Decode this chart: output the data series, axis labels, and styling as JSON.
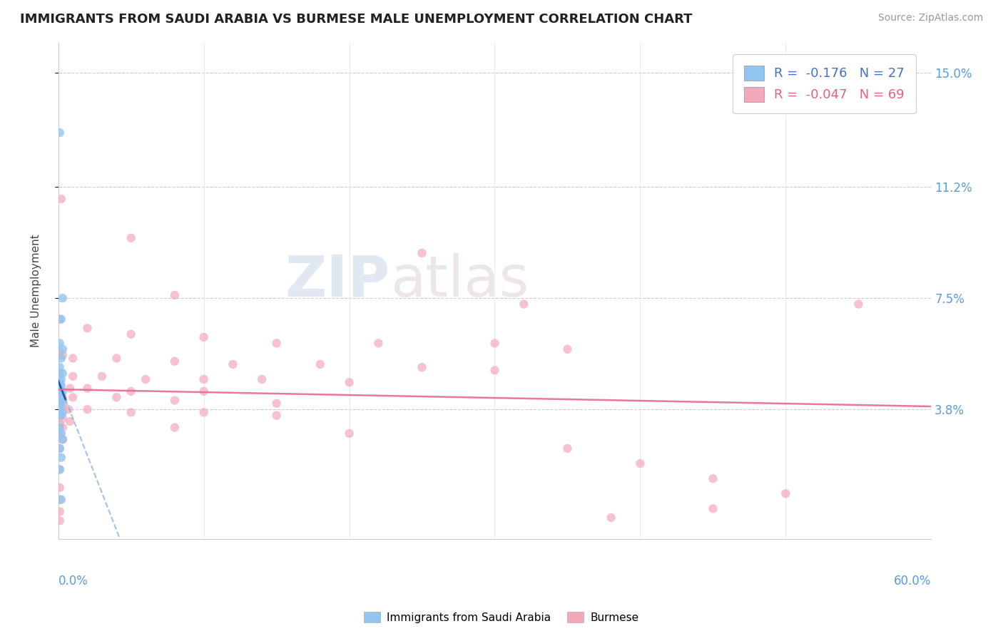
{
  "title": "IMMIGRANTS FROM SAUDI ARABIA VS BURMESE MALE UNEMPLOYMENT CORRELATION CHART",
  "source": "Source: ZipAtlas.com",
  "ylabel": "Male Unemployment",
  "y_tick_labels": [
    "3.8%",
    "7.5%",
    "11.2%",
    "15.0%"
  ],
  "y_tick_values": [
    0.038,
    0.075,
    0.112,
    0.15
  ],
  "xlim": [
    0.0,
    0.6
  ],
  "ylim": [
    -0.005,
    0.16
  ],
  "legend_blue_r": "-0.176",
  "legend_blue_n": "27",
  "legend_pink_r": "-0.047",
  "legend_pink_n": "69",
  "blue_color": "#92C5F0",
  "pink_color": "#F4A8BC",
  "blue_scatter": [
    [
      0.001,
      0.13
    ],
    [
      0.003,
      0.075
    ],
    [
      0.002,
      0.068
    ],
    [
      0.001,
      0.06
    ],
    [
      0.003,
      0.058
    ],
    [
      0.002,
      0.055
    ],
    [
      0.001,
      0.052
    ],
    [
      0.003,
      0.05
    ],
    [
      0.002,
      0.048
    ],
    [
      0.001,
      0.047
    ],
    [
      0.002,
      0.046
    ],
    [
      0.001,
      0.045
    ],
    [
      0.003,
      0.044
    ],
    [
      0.002,
      0.043
    ],
    [
      0.001,
      0.042
    ],
    [
      0.003,
      0.041
    ],
    [
      0.002,
      0.04
    ],
    [
      0.001,
      0.038
    ],
    [
      0.003,
      0.037
    ],
    [
      0.002,
      0.036
    ],
    [
      0.001,
      0.032
    ],
    [
      0.002,
      0.03
    ],
    [
      0.003,
      0.028
    ],
    [
      0.001,
      0.025
    ],
    [
      0.002,
      0.022
    ],
    [
      0.001,
      0.018
    ],
    [
      0.002,
      0.008
    ]
  ],
  "pink_scatter": [
    [
      0.002,
      0.108
    ],
    [
      0.05,
      0.095
    ],
    [
      0.25,
      0.09
    ],
    [
      0.08,
      0.076
    ],
    [
      0.55,
      0.073
    ],
    [
      0.32,
      0.073
    ],
    [
      0.001,
      0.068
    ],
    [
      0.02,
      0.065
    ],
    [
      0.05,
      0.063
    ],
    [
      0.1,
      0.062
    ],
    [
      0.15,
      0.06
    ],
    [
      0.22,
      0.06
    ],
    [
      0.3,
      0.06
    ],
    [
      0.35,
      0.058
    ],
    [
      0.001,
      0.057
    ],
    [
      0.003,
      0.056
    ],
    [
      0.01,
      0.055
    ],
    [
      0.04,
      0.055
    ],
    [
      0.08,
      0.054
    ],
    [
      0.12,
      0.053
    ],
    [
      0.18,
      0.053
    ],
    [
      0.25,
      0.052
    ],
    [
      0.3,
      0.051
    ],
    [
      0.001,
      0.05
    ],
    [
      0.01,
      0.049
    ],
    [
      0.03,
      0.049
    ],
    [
      0.06,
      0.048
    ],
    [
      0.1,
      0.048
    ],
    [
      0.14,
      0.048
    ],
    [
      0.2,
      0.047
    ],
    [
      0.001,
      0.046
    ],
    [
      0.008,
      0.045
    ],
    [
      0.02,
      0.045
    ],
    [
      0.05,
      0.044
    ],
    [
      0.1,
      0.044
    ],
    [
      0.001,
      0.043
    ],
    [
      0.003,
      0.042
    ],
    [
      0.01,
      0.042
    ],
    [
      0.04,
      0.042
    ],
    [
      0.08,
      0.041
    ],
    [
      0.15,
      0.04
    ],
    [
      0.001,
      0.04
    ],
    [
      0.003,
      0.039
    ],
    [
      0.007,
      0.038
    ],
    [
      0.02,
      0.038
    ],
    [
      0.05,
      0.037
    ],
    [
      0.1,
      0.037
    ],
    [
      0.15,
      0.036
    ],
    [
      0.001,
      0.036
    ],
    [
      0.003,
      0.035
    ],
    [
      0.008,
      0.034
    ],
    [
      0.001,
      0.033
    ],
    [
      0.003,
      0.032
    ],
    [
      0.08,
      0.032
    ],
    [
      0.2,
      0.03
    ],
    [
      0.001,
      0.03
    ],
    [
      0.003,
      0.028
    ],
    [
      0.35,
      0.025
    ],
    [
      0.001,
      0.025
    ],
    [
      0.4,
      0.02
    ],
    [
      0.001,
      0.018
    ],
    [
      0.45,
      0.015
    ],
    [
      0.001,
      0.012
    ],
    [
      0.5,
      0.01
    ],
    [
      0.001,
      0.008
    ],
    [
      0.45,
      0.005
    ],
    [
      0.001,
      0.004
    ],
    [
      0.38,
      0.002
    ],
    [
      0.001,
      0.001
    ]
  ],
  "x_gridlines": [
    0.0,
    0.1,
    0.2,
    0.3,
    0.4,
    0.5,
    0.6
  ]
}
